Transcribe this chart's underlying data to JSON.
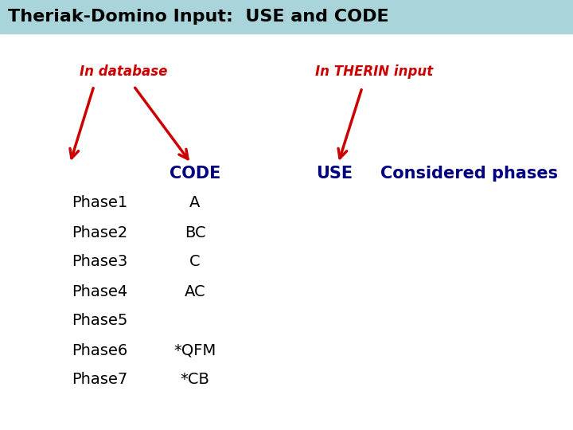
{
  "title": "Theriak-Domino Input:  USE and CODE",
  "title_bg_color": "#a8d4da",
  "title_color": "#000000",
  "title_fontsize": 16,
  "bg_color": "#ffffff",
  "header_in_database": "In database",
  "header_in_therin": "In THERIN input",
  "header_code": "CODE",
  "header_use": "USE",
  "header_considered": "Considered phases",
  "header_color": "#cc0000",
  "col_header_color": "#000080",
  "phases": [
    "Phase1",
    "Phase2",
    "Phase3",
    "Phase4",
    "Phase5",
    "Phase6",
    "Phase7"
  ],
  "codes": [
    "A",
    "BC",
    "C",
    "AC",
    "",
    "*QFM",
    "*CB"
  ],
  "phase_color": "#000000",
  "code_color": "#000000",
  "arrow_color": "#cc0000",
  "fontsize_body": 14,
  "fontsize_header_label": 12,
  "fontsize_col_header": 15
}
